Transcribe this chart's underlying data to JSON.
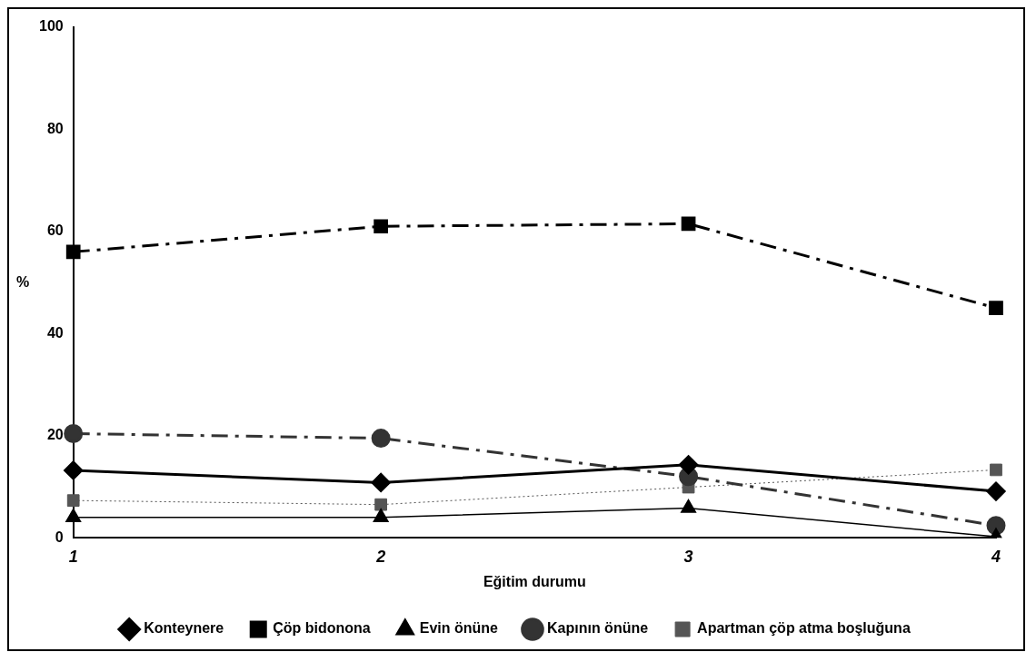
{
  "chart_data": {
    "type": "line",
    "xlabel": "Eğitim durumu",
    "ylabel": "%",
    "categories": [
      "1",
      "2",
      "3",
      "4"
    ],
    "ylim": [
      0,
      100
    ],
    "yticks": [
      0,
      20,
      40,
      60,
      80,
      100
    ],
    "grid": false,
    "legend": "bottom",
    "series": [
      {
        "name": "Konteynere",
        "color": "#000000",
        "marker": "diamond",
        "line_style": "solid",
        "values": [
          13.2,
          10.8,
          14.3,
          9.1
        ]
      },
      {
        "name": "Çöp bidonona",
        "color": "#000000",
        "marker": "square",
        "line_style": "dashed",
        "values": [
          56,
          61,
          61.5,
          45
        ]
      },
      {
        "name": "Evin önüne",
        "color": "#000000",
        "marker": "triangle",
        "line_style": "solid",
        "values": [
          4,
          4,
          5.8,
          0.2
        ]
      },
      {
        "name": "Kapının önüne",
        "color": "#333333",
        "marker": "circle",
        "line_style": "dashed",
        "values": [
          20.4,
          19.5,
          12,
          2.4
        ]
      },
      {
        "name": "Apartman çöp atma boşluğuna",
        "color": "#555555",
        "marker": "square",
        "line_style": "dotted",
        "values": [
          7.3,
          6.5,
          9.9,
          13.3
        ]
      }
    ]
  }
}
